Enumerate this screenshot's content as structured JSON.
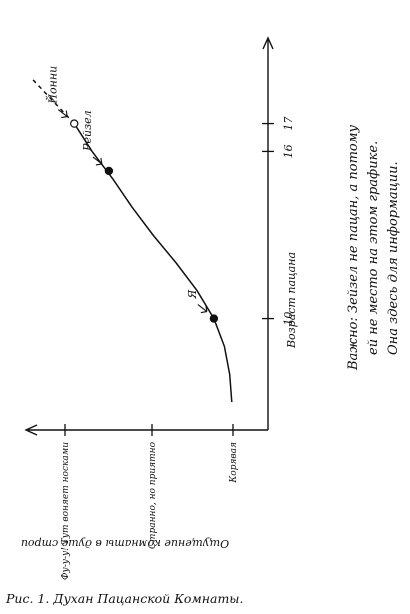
{
  "chart_data": {
    "type": "line",
    "caption": "Рис. 1. Духан Пацанской Комнаты.",
    "xlabel": "Возраст пацана",
    "ylabel": "Ощущение комнаты в душе строи",
    "x_ticks": [
      10,
      16,
      17
    ],
    "xlim": [
      6,
      20
    ],
    "y_ticks": [
      "Корявая",
      "Странно, но приятно",
      "Фу-у-у! Тут воняет носками"
    ],
    "series": [
      {
        "x": [
          7,
          8,
          9,
          10,
          11,
          12,
          13,
          14,
          15,
          16,
          17
        ],
        "y": [
          0.05,
          0.07,
          0.12,
          0.22,
          0.38,
          0.58,
          0.8,
          1.0,
          1.18,
          1.38,
          1.55
        ]
      }
    ],
    "dashed_extension": {
      "x": [
        17,
        18.6
      ],
      "y": [
        1.55,
        1.95
      ]
    },
    "points": [
      {
        "label": "Я",
        "x": 10,
        "y": 0.22
      },
      {
        "label": "Рейзел",
        "x": 15.3,
        "y": 1.22
      },
      {
        "label": "Йонни",
        "x": 17,
        "y": 1.55
      }
    ],
    "note": {
      "line1": "Важно: Зейзел не пацан, а потому",
      "line2": "ей не место на этом графике.",
      "line3": "Она здесь для информации."
    }
  }
}
